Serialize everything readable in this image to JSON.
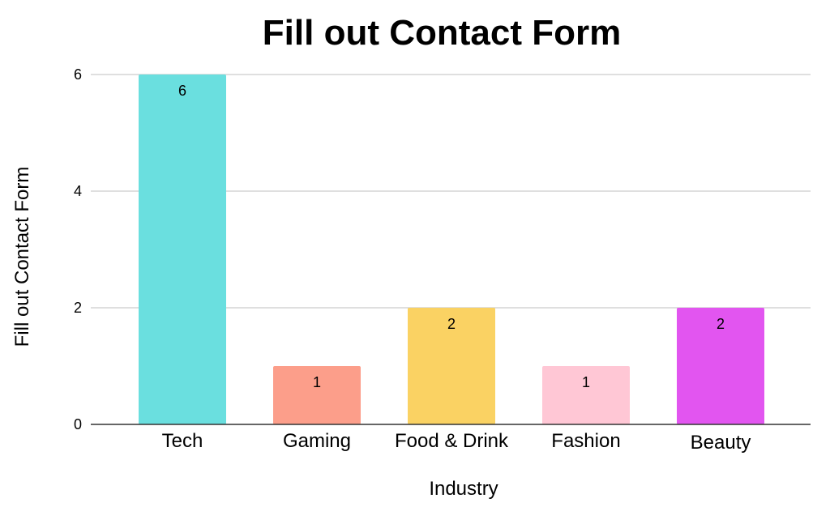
{
  "chart_data": {
    "type": "bar",
    "title": "Fill out Contact Form",
    "xlabel": "Industry",
    "ylabel": "Fill out Contact Form",
    "categories": [
      "Tech",
      "Gaming",
      "Food & Drink",
      "Fashion",
      "Beauty"
    ],
    "values": [
      6,
      1,
      2,
      1,
      2
    ],
    "data_labels": [
      "6",
      "1",
      "2",
      "1",
      "2"
    ],
    "bar_colors": [
      "#6ADFDF",
      "#FC9E8A",
      "#FAD263",
      "#FFC7D5",
      "#E255F0"
    ],
    "ylim": [
      0,
      6
    ],
    "yticks": [
      0,
      2,
      4,
      6
    ],
    "ytick_labels": [
      "0",
      "2",
      "4",
      "6"
    ],
    "grid": true,
    "legend": "none"
  }
}
